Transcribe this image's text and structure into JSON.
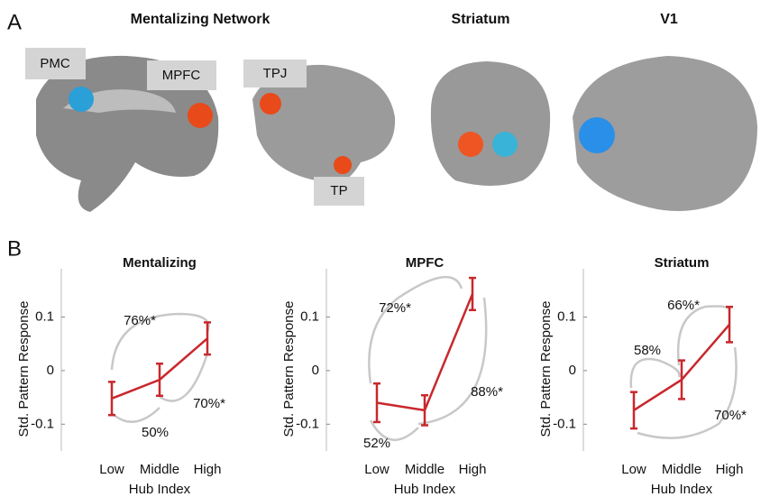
{
  "panels": {
    "a": "A",
    "b": "B"
  },
  "brain_titles": [
    "Mentalizing Network",
    "Striatum",
    "V1"
  ],
  "regions": [
    "PMC",
    "MPFC",
    "TPJ",
    "TP"
  ],
  "chart_data": [
    {
      "type": "line",
      "title": "Mentalizing",
      "xlabel": "Hub Index",
      "ylabel": "Std. Pattern Response",
      "categories": [
        "Low",
        "Middle",
        "High"
      ],
      "series": [
        {
          "color": "#c8282d",
          "values": [
            -0.052,
            -0.017,
            0.06
          ],
          "errors": [
            0.031,
            0.03,
            0.03
          ]
        }
      ],
      "ylim": [
        -0.15,
        0.19
      ],
      "yticks": [
        -0.1,
        0,
        0.1
      ],
      "annotations": [
        "76%*",
        "50%",
        "70%*"
      ]
    },
    {
      "type": "line",
      "title": "MPFC",
      "xlabel": "Hub Index",
      "ylabel": "Std. Pattern Response",
      "categories": [
        "Low",
        "Middle",
        "High"
      ],
      "series": [
        {
          "color": "#c8282d",
          "values": [
            -0.06,
            -0.074,
            0.143
          ],
          "errors": [
            0.036,
            0.028,
            0.03
          ]
        }
      ],
      "ylim": [
        -0.15,
        0.19
      ],
      "yticks": [
        -0.1,
        0,
        0.1
      ],
      "annotations": [
        "72%*",
        "52%",
        "88%*"
      ]
    },
    {
      "type": "line",
      "title": "Striatum",
      "xlabel": "Hub Index",
      "ylabel": "Std. Pattern Response",
      "categories": [
        "Low",
        "Middle",
        "High"
      ],
      "series": [
        {
          "color": "#c8282d",
          "values": [
            -0.074,
            -0.017,
            0.086
          ],
          "errors": [
            0.034,
            0.036,
            0.033
          ]
        }
      ],
      "ylim": [
        -0.15,
        0.19
      ],
      "yticks": [
        -0.1,
        0,
        0.1
      ],
      "annotations": [
        "58%",
        "66%*",
        "70%*"
      ]
    }
  ]
}
